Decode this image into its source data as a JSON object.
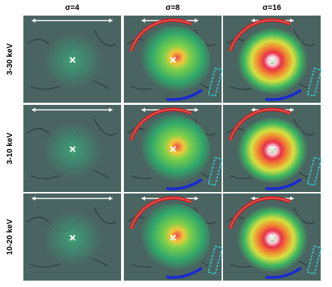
{
  "columns": [
    "σ=4",
    "σ=8",
    "σ=16"
  ],
  "rows": [
    "3-30 keV",
    "3-10 keV",
    "10-20 keV"
  ]
}
